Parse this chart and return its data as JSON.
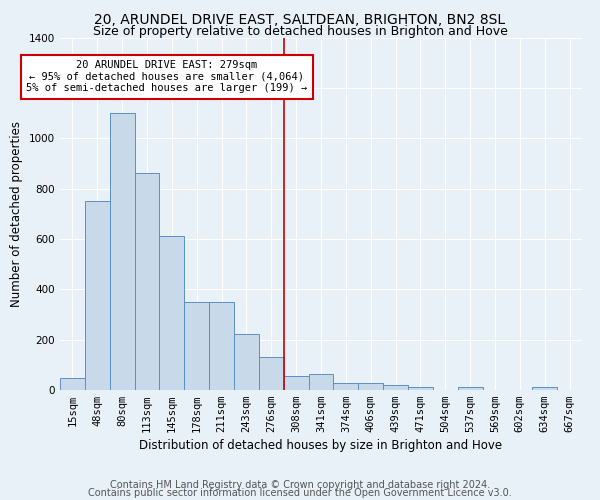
{
  "title": "20, ARUNDEL DRIVE EAST, SALTDEAN, BRIGHTON, BN2 8SL",
  "subtitle": "Size of property relative to detached houses in Brighton and Hove",
  "xlabel": "Distribution of detached houses by size in Brighton and Hove",
  "ylabel": "Number of detached properties",
  "footer1": "Contains HM Land Registry data © Crown copyright and database right 2024.",
  "footer2": "Contains public sector information licensed under the Open Government Licence v3.0.",
  "bar_labels": [
    "15sqm",
    "48sqm",
    "80sqm",
    "113sqm",
    "145sqm",
    "178sqm",
    "211sqm",
    "243sqm",
    "276sqm",
    "308sqm",
    "341sqm",
    "374sqm",
    "406sqm",
    "439sqm",
    "471sqm",
    "504sqm",
    "537sqm",
    "569sqm",
    "602sqm",
    "634sqm",
    "667sqm"
  ],
  "bar_values": [
    48,
    750,
    1100,
    860,
    612,
    348,
    348,
    222,
    132,
    55,
    65,
    28,
    28,
    20,
    12,
    0,
    10,
    0,
    0,
    10,
    0
  ],
  "bar_color": "#c8d9ea",
  "bar_edge_color": "#5b8fc4",
  "vline_pos": 8.5,
  "vline_color": "#cc0000",
  "annotation_text": "20 ARUNDEL DRIVE EAST: 279sqm\n← 95% of detached houses are smaller (4,064)\n5% of semi-detached houses are larger (199) →",
  "annotation_box_color": "#ffffff",
  "annotation_box_edge": "#cc0000",
  "ylim": [
    0,
    1400
  ],
  "yticks": [
    0,
    200,
    400,
    600,
    800,
    1000,
    1200,
    1400
  ],
  "bg_color": "#e8f0f8",
  "grid_color": "#d0dce8",
  "title_fontsize": 10,
  "subtitle_fontsize": 9,
  "axis_label_fontsize": 8.5,
  "tick_fontsize": 7.5,
  "footer_fontsize": 7
}
